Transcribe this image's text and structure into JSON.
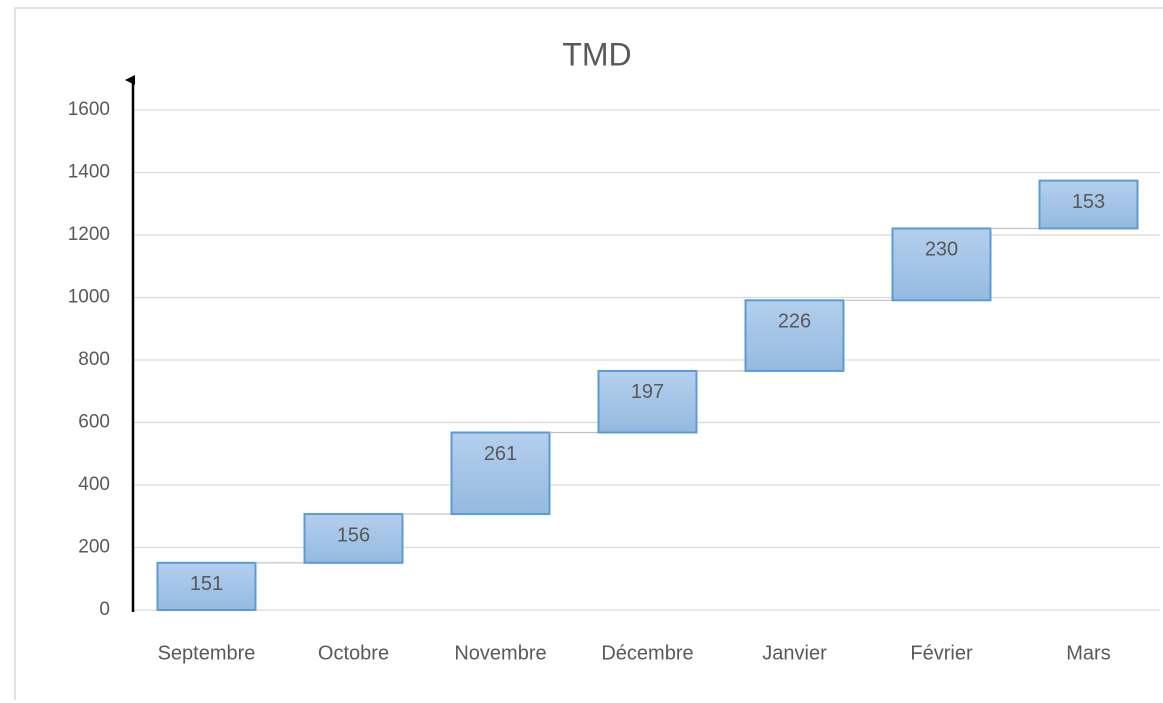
{
  "chart_data": {
    "type": "waterfall",
    "title": "TMD",
    "categories": [
      "Septembre",
      "Octobre",
      "Novembre",
      "Décembre",
      "Janvier",
      "Février",
      "Mars"
    ],
    "values": [
      151,
      156,
      261,
      197,
      226,
      230,
      153
    ],
    "color": "#9ec3e8",
    "edge_color": "#5b9bd5",
    "ylim": [
      0,
      1600
    ],
    "yticks": [
      0,
      200,
      400,
      600,
      800,
      1000,
      1200,
      1400,
      1600
    ],
    "grid": true
  }
}
